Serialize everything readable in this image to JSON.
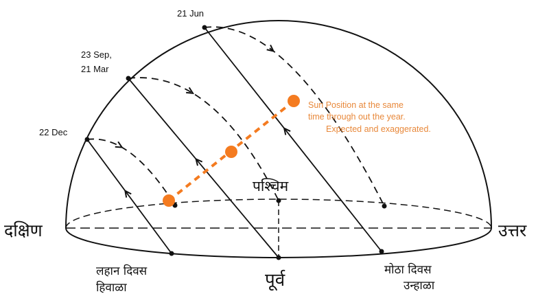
{
  "labels": {
    "jun": "21 Jun",
    "sep": "23 Sep,",
    "mar": "21 Mar",
    "dec": "22 Dec",
    "note1": "Sun Position at the same",
    "note2": "time through out the year.",
    "note3": "Expected and exaggerated.",
    "west": "पश्चिम",
    "south": "दक्षिण",
    "north": "उत्तर",
    "east": "पूर्व",
    "short_day": "लहान दिवस",
    "winter": "हिवाळा",
    "long_day": "मोठा दिवस",
    "summer": "उन्हाळा"
  },
  "colors": {
    "line": "#111111",
    "sun": "#f47b20",
    "note": "#e8883a"
  },
  "icons": [
    "arrow-up-icon",
    "arrow-down-icon",
    "sun-dot-icon"
  ]
}
